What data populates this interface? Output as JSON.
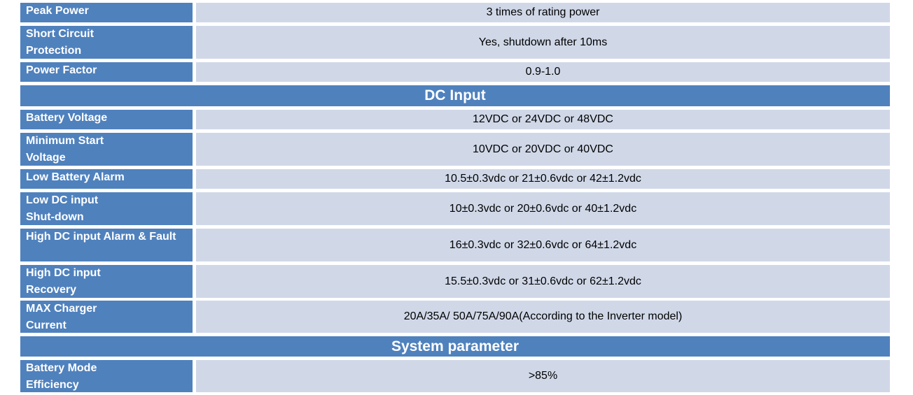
{
  "colors": {
    "header_blue": "#4f81bd",
    "value_band": "#d0d8e8",
    "label_text": "#ffffff"
  },
  "rows_top": [
    {
      "label": "Peak Power",
      "value": "3 times of rating power"
    },
    {
      "label": "Short Circuit Protection",
      "value": "Yes, shutdown after 10ms"
    },
    {
      "label": "Power Factor",
      "value": "0.9-1.0"
    }
  ],
  "sections": {
    "dc_input": "DC Input",
    "system_parameter": "System parameter"
  },
  "rows_dc": [
    {
      "label": "Battery Voltage",
      "value": "12VDC or 24VDC or 48VDC"
    },
    {
      "label": "Minimum Start Voltage",
      "value": "10VDC or 20VDC or 40VDC"
    },
    {
      "label": "Low Battery Alarm",
      "value": "10.5±0.3vdc or 21±0.6vdc or 42±1.2vdc"
    },
    {
      "label": "Low DC input Shut-down",
      "value": "10±0.3vdc or 20±0.6vdc or 40±1.2vdc"
    },
    {
      "label": "High DC input Alarm & Fault",
      "value": "16±0.3vdc or 32±0.6vdc or 64±1.2vdc"
    },
    {
      "label": "High DC input Recovery",
      "value": "15.5±0.3vdc or 31±0.6vdc or 62±1.2vdc"
    },
    {
      "label": "MAX Charger Current",
      "value": "20A/35A/ 50A/75A/90A(According to the Inverter model)"
    }
  ],
  "rows_sys": [
    {
      "label": "Battery Mode Efficiency",
      "value": ">85%"
    }
  ]
}
